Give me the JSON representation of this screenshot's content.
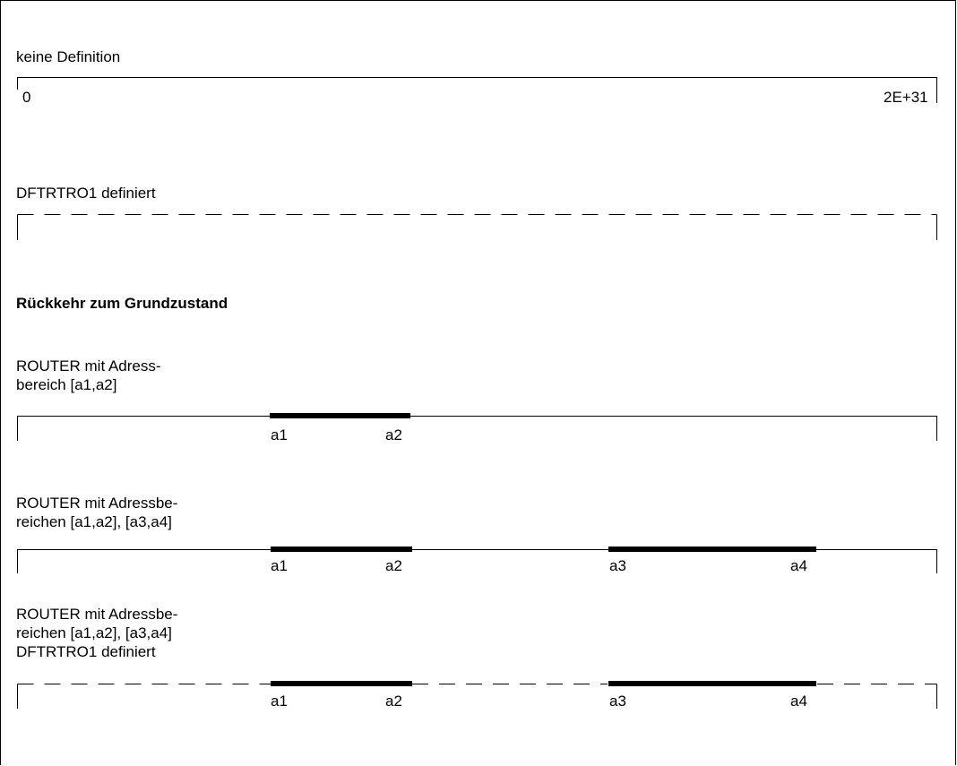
{
  "sections": {
    "keine": {
      "title": "keine Definition",
      "start_label": "0",
      "end_label": "2E+31"
    },
    "dftrtro1": {
      "title": "DFTRTRO1 definiert"
    },
    "heading": "Rückkehr zum Grundzustand",
    "router1": {
      "title_line1": "ROUTER mit Adress-",
      "title_line2": "bereich [a1,a2]",
      "labels": [
        "a1",
        "a2"
      ]
    },
    "router2": {
      "title_line1": "ROUTER mit Adressbe-",
      "title_line2": "reichen [a1,a2], [a3,a4]",
      "labels": [
        "a1",
        "a2",
        "a3",
        "a4"
      ]
    },
    "router3": {
      "title_line1": "ROUTER mit Adressbe-",
      "title_line2": "reichen [a1,a2], [a3,a4]",
      "title_line3": "DFTRTRO1 definiert",
      "labels": [
        "a1",
        "a2",
        "a3",
        "a4"
      ]
    }
  }
}
